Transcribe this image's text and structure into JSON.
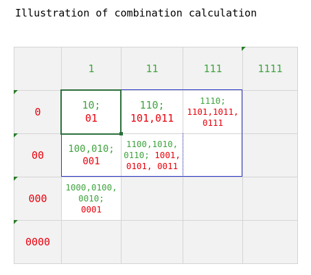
{
  "title": "Illustration of combination calculation",
  "column_headers": [
    "1",
    "11",
    "111",
    "1111"
  ],
  "row_headers": [
    "0",
    "00",
    "000",
    "0000"
  ],
  "cells": {
    "r1c1": {
      "green": "10;",
      "red": "01"
    },
    "r1c2": {
      "green": "110;",
      "red": "101,011"
    },
    "r1c3": {
      "green": "1110;",
      "red1": "1101,1011,",
      "red2": "0111"
    },
    "r2c1": {
      "green": "100,010;",
      "red": "001"
    },
    "r2c2": {
      "green1": "1100,1010,",
      "green2": "0110;",
      "red_inline": "1001,",
      "red2": "0101, 0011"
    },
    "r3c1": {
      "green1": "1000,0100,",
      "green2": "0010;",
      "red": "0001"
    }
  },
  "colors": {
    "green_text": "#3fa33f",
    "red_text": "#e8000b",
    "highlight_border_blue": "#2b36c9",
    "selected_border_green": "#2a6f3a",
    "grid_background": "#f2f2f2"
  }
}
